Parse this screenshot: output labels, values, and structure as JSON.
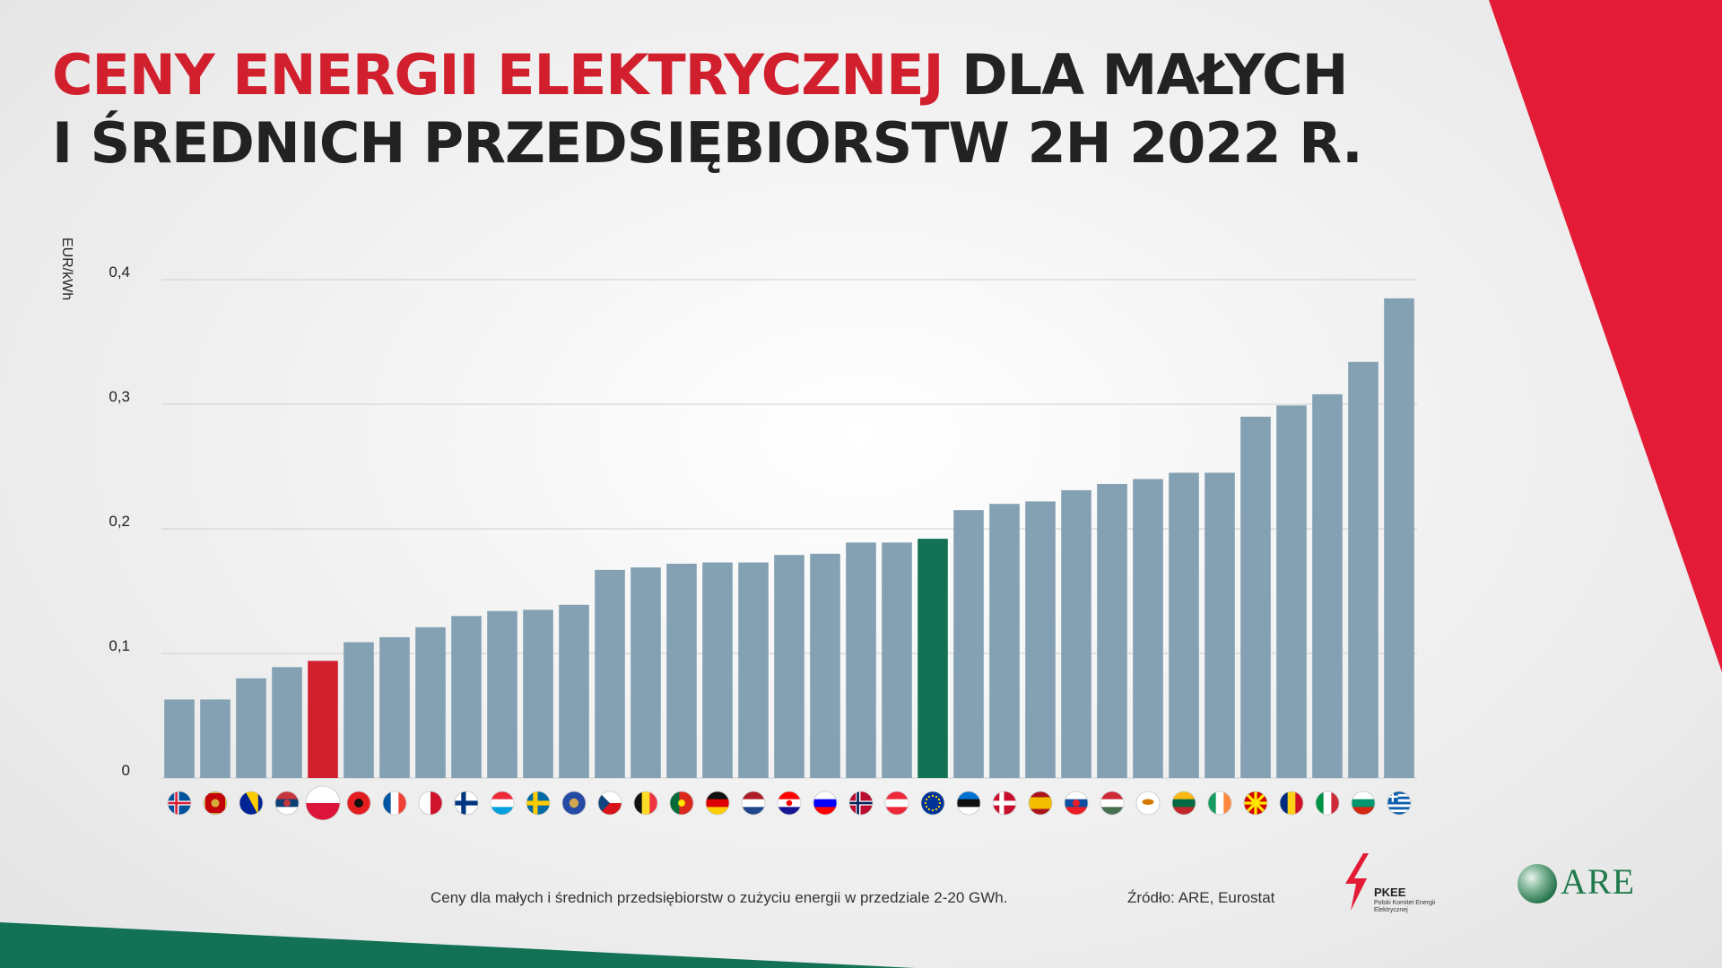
{
  "header": {
    "title_red": "CENY ENERGII ELEKTRYCZNEJ",
    "title_rest_line1": "DLA MAŁYCH",
    "title_line2": "I ŚREDNICH PRZEDSIĘBIORSTW 2H 2022 R."
  },
  "colors": {
    "bar_default": "#84a1b3",
    "bar_poland": "#d21f2e",
    "bar_eu": "#137256",
    "accent_red": "#e31b36",
    "accent_green": "#137256"
  },
  "chart_data": {
    "type": "bar",
    "ylabel": "EUR/kWh",
    "ylim": [
      0,
      0.4
    ],
    "yticks": [
      "0",
      "0,1",
      "0,2",
      "0,3",
      "0,4"
    ],
    "grid": true,
    "categories": [
      "IS",
      "ME",
      "BA",
      "RS",
      "PL",
      "AL",
      "FR",
      "MT",
      "FI",
      "LU",
      "SE",
      "XK",
      "CZ",
      "BE",
      "PT",
      "DE",
      "NL",
      "HR",
      "SI",
      "NO",
      "AT",
      "EU",
      "EE",
      "DK",
      "ES",
      "SK",
      "HU",
      "CY",
      "LT",
      "IE",
      "MK",
      "RO",
      "IT",
      "BG",
      "GR"
    ],
    "category_icons": [
      "iceland-flag-icon",
      "montenegro-flag-icon",
      "bosnia-flag-icon",
      "serbia-flag-icon",
      "poland-flag-icon",
      "albania-flag-icon",
      "france-flag-icon",
      "malta-flag-icon",
      "finland-flag-icon",
      "luxembourg-flag-icon",
      "sweden-flag-icon",
      "kosovo-flag-icon",
      "czechia-flag-icon",
      "belgium-flag-icon",
      "portugal-flag-icon",
      "germany-flag-icon",
      "netherlands-flag-icon",
      "croatia-flag-icon",
      "slovenia-flag-icon",
      "norway-flag-icon",
      "austria-flag-icon",
      "eu-flag-icon",
      "estonia-flag-icon",
      "denmark-flag-icon",
      "spain-flag-icon",
      "slovakia-flag-icon",
      "hungary-flag-icon",
      "cyprus-flag-icon",
      "lithuania-flag-icon",
      "ireland-flag-icon",
      "north-macedonia-flag-icon",
      "romania-flag-icon",
      "italy-flag-icon",
      "bulgaria-flag-icon",
      "greece-flag-icon"
    ],
    "values": [
      0.063,
      0.063,
      0.08,
      0.089,
      0.094,
      0.109,
      0.113,
      0.121,
      0.13,
      0.134,
      0.135,
      0.139,
      0.167,
      0.169,
      0.172,
      0.173,
      0.173,
      0.179,
      0.18,
      0.189,
      0.189,
      0.192,
      0.215,
      0.22,
      0.222,
      0.231,
      0.236,
      0.24,
      0.245,
      0.245,
      0.29,
      0.299,
      0.308,
      0.334,
      0.385
    ],
    "highlight": {
      "PL": "bar_poland",
      "EU": "bar_eu"
    }
  },
  "footer": {
    "note": "Ceny dla małych i średnich przedsiębiorstw o zużyciu energii w przedziale 2-20 GWh.",
    "source": "Źródło: ARE, Eurostat",
    "pkee_name": "PKEE",
    "pkee_full": "Polski Komitet Energii Elektrycznej",
    "are_name": "ARE"
  }
}
